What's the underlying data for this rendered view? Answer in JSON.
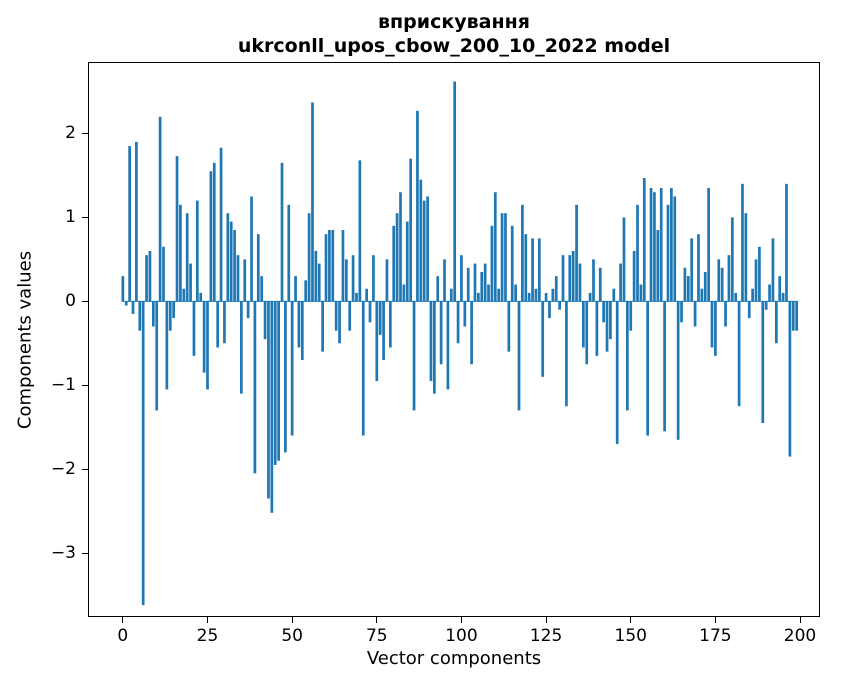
{
  "chart_data": {
    "type": "bar",
    "title": "вприскування",
    "subtitle": "ukrconll_upos_cbow_200_10_2022 model",
    "xlabel": "Vector components",
    "ylabel": "Components values",
    "bar_color": "#1f77b4",
    "xlim": [
      -10,
      205.6
    ],
    "ylim": [
      -3.75,
      2.84
    ],
    "x_ticks": [
      0,
      25,
      50,
      75,
      100,
      125,
      150,
      175,
      200
    ],
    "y_ticks": [
      2,
      1,
      0,
      -1,
      -2,
      -3
    ],
    "bar_width": 0.8,
    "values": [
      0.3,
      -0.05,
      1.85,
      -0.15,
      1.9,
      -0.35,
      -3.62,
      0.55,
      0.6,
      -0.3,
      -1.3,
      2.2,
      0.65,
      -1.05,
      -0.35,
      -0.2,
      1.73,
      1.15,
      0.15,
      1.05,
      0.45,
      -0.65,
      1.2,
      0.1,
      -0.85,
      -1.05,
      1.55,
      1.65,
      -0.55,
      1.83,
      -0.5,
      1.05,
      0.95,
      0.85,
      0.55,
      -1.1,
      0.5,
      -0.2,
      1.25,
      -2.05,
      0.8,
      0.3,
      -0.45,
      -2.35,
      -2.52,
      -1.95,
      -1.9,
      1.65,
      -1.8,
      1.15,
      -1.6,
      0.3,
      -0.55,
      -0.7,
      0.25,
      1.05,
      2.37,
      0.6,
      0.45,
      -0.6,
      0.8,
      0.85,
      0.85,
      -0.35,
      -0.5,
      0.85,
      0.5,
      -0.35,
      0.55,
      0.1,
      1.68,
      -1.6,
      0.15,
      -0.25,
      0.55,
      -0.95,
      -0.4,
      -0.7,
      0.5,
      -0.55,
      0.9,
      1.05,
      1.3,
      0.2,
      0.95,
      1.7,
      -1.3,
      2.27,
      1.45,
      1.2,
      1.25,
      -0.95,
      -1.1,
      0.3,
      -0.75,
      0.5,
      -1.05,
      0.15,
      2.62,
      -0.5,
      0.55,
      -0.3,
      0.4,
      -0.75,
      0.45,
      0.1,
      0.35,
      0.45,
      0.2,
      0.9,
      1.3,
      0.15,
      1.05,
      1.05,
      -0.6,
      0.9,
      0.2,
      -1.3,
      1.15,
      0.8,
      0.1,
      0.75,
      0.15,
      0.75,
      -0.9,
      0.1,
      -0.2,
      0.15,
      0.3,
      -0.1,
      0.55,
      -1.25,
      0.55,
      0.6,
      1.15,
      0.45,
      -0.55,
      -0.75,
      0.1,
      0.5,
      -0.65,
      0.4,
      -0.25,
      -0.6,
      -0.45,
      0.15,
      -1.7,
      0.45,
      1.0,
      -1.3,
      -0.35,
      0.6,
      1.15,
      0.2,
      1.47,
      -1.6,
      1.35,
      1.3,
      0.85,
      1.35,
      -1.55,
      1.15,
      1.35,
      1.25,
      -1.65,
      -0.25,
      0.4,
      0.3,
      0.75,
      -0.3,
      0.8,
      0.15,
      0.35,
      1.35,
      -0.55,
      -0.65,
      0.5,
      0.4,
      -0.3,
      0.55,
      1.0,
      0.1,
      -1.25,
      1.4,
      1.05,
      -0.2,
      0.15,
      0.5,
      0.65,
      -1.45,
      -0.1,
      0.2,
      0.75,
      -0.5,
      0.3,
      0.1,
      1.4,
      -1.85,
      -0.35,
      -0.35
    ]
  }
}
